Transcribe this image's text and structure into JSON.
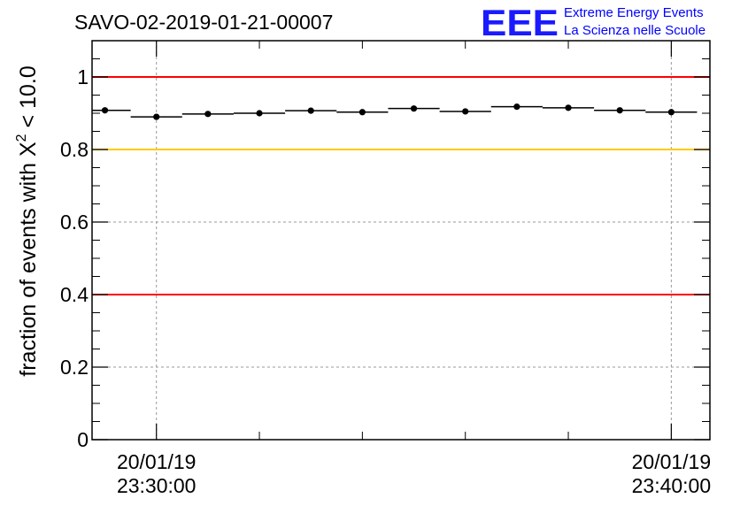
{
  "header": {
    "title": "SAVO-02-2019-01-21-00007",
    "logo_text": "EEE",
    "logo_line1": "Extreme Energy Events",
    "logo_line2": "La Scienza nelle Scuole"
  },
  "chart_data": {
    "type": "scatter",
    "title": "SAVO-02-2019-01-21-00007",
    "ylabel_prefix": "fraction of events with ",
    "ylabel_symbol": "X",
    "ylabel_exp": "2",
    "ylabel_suffix": " < 10.0",
    "ylim": [
      0,
      1.1
    ],
    "yticks": [
      0,
      0.2,
      0.4,
      0.6,
      0.8,
      1
    ],
    "ytick_labels": [
      "0",
      "0.2",
      "0.4",
      "0.6",
      "0.8",
      "1"
    ],
    "xlim_minutes": [
      -1.25,
      10.75
    ],
    "xticks_minutes": [
      0,
      10
    ],
    "xtick_labels": [
      [
        "20/01/19",
        "23:30:00"
      ],
      [
        "20/01/19",
        "23:40:00"
      ]
    ],
    "grid": true,
    "reference_lines": [
      {
        "value": 1.0,
        "color": "#ff0000"
      },
      {
        "value": 0.8,
        "color": "#ffcc00"
      },
      {
        "value": 0.4,
        "color": "#ff0000"
      }
    ],
    "series": [
      {
        "bin_width_minutes": 1.0,
        "x_minutes": [
          -1.0,
          0.0,
          1.0,
          2.0,
          3.0,
          4.0,
          5.0,
          6.0,
          7.0,
          8.0,
          9.0,
          10.0
        ],
        "values": [
          0.908,
          0.89,
          0.898,
          0.9,
          0.907,
          0.903,
          0.913,
          0.905,
          0.918,
          0.915,
          0.908,
          0.903
        ],
        "color": "#000000"
      }
    ]
  }
}
